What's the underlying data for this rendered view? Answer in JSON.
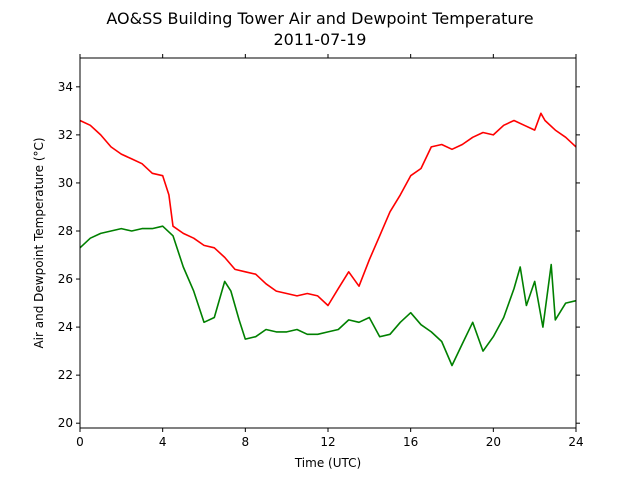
{
  "chart_data": {
    "type": "line",
    "title": "AO&SS Building Tower Air and Dewpoint Temperature",
    "subtitle": "2011-07-19",
    "xlabel": "Time (UTC)",
    "ylabel": "Air and Dewpoint Temperature (°C)",
    "xlim": [
      0,
      24
    ],
    "ylim": [
      19.8,
      35.2
    ],
    "xticks": [
      0,
      4,
      8,
      12,
      16,
      20,
      24
    ],
    "yticks": [
      20,
      22,
      24,
      26,
      28,
      30,
      32,
      34
    ],
    "grid": false,
    "legend": "none",
    "series": [
      {
        "color": "#ff0000",
        "x": [
          0,
          0.5,
          1,
          1.5,
          2,
          2.5,
          3,
          3.5,
          4,
          4.3,
          4.5,
          5,
          5.5,
          6,
          6.5,
          7,
          7.5,
          8,
          8.5,
          9,
          9.5,
          10,
          10.5,
          11,
          11.5,
          12,
          12.5,
          13,
          13.5,
          14,
          14.5,
          15,
          15.5,
          16,
          16.5,
          17,
          17.5,
          18,
          18.5,
          19,
          19.5,
          20,
          20.5,
          21,
          21.5,
          22,
          22.3,
          22.5,
          23,
          23.5,
          24
        ],
        "y": [
          32.6,
          32.4,
          32.0,
          31.5,
          31.2,
          31.0,
          30.8,
          30.4,
          30.3,
          29.5,
          28.2,
          27.9,
          27.7,
          27.4,
          27.3,
          26.9,
          26.4,
          26.3,
          26.2,
          25.8,
          25.5,
          25.4,
          25.3,
          25.4,
          25.3,
          24.9,
          25.6,
          26.3,
          25.7,
          26.8,
          27.8,
          28.8,
          29.5,
          30.3,
          30.6,
          31.5,
          31.6,
          31.4,
          31.6,
          31.9,
          32.1,
          32.0,
          32.4,
          32.6,
          32.4,
          32.2,
          32.9,
          32.6,
          32.2,
          31.9,
          31.5
        ]
      },
      {
        "color": "#008000",
        "x": [
          0,
          0.5,
          1,
          1.5,
          2,
          2.5,
          3,
          3.5,
          4,
          4.5,
          5,
          5.5,
          6,
          6.5,
          7,
          7.3,
          7.7,
          8,
          8.5,
          9,
          9.5,
          10,
          10.5,
          11,
          11.5,
          12,
          12.5,
          13,
          13.5,
          14,
          14.5,
          15,
          15.5,
          16,
          16.5,
          17,
          17.5,
          18,
          18.5,
          19,
          19.5,
          20,
          20.5,
          21,
          21.3,
          21.6,
          22,
          22.4,
          22.8,
          23,
          23.5,
          24
        ],
        "y": [
          27.3,
          27.7,
          27.9,
          28.0,
          28.1,
          28.0,
          28.1,
          28.1,
          28.2,
          27.8,
          26.5,
          25.5,
          24.2,
          24.4,
          25.9,
          25.5,
          24.3,
          23.5,
          23.6,
          23.9,
          23.8,
          23.8,
          23.9,
          23.7,
          23.7,
          23.8,
          23.9,
          24.3,
          24.2,
          24.4,
          23.6,
          23.7,
          24.2,
          24.6,
          24.1,
          23.8,
          23.4,
          22.4,
          23.3,
          24.2,
          23.0,
          23.6,
          24.4,
          25.6,
          26.5,
          24.9,
          25.9,
          24.0,
          26.6,
          24.3,
          25.0,
          25.1
        ]
      }
    ]
  }
}
